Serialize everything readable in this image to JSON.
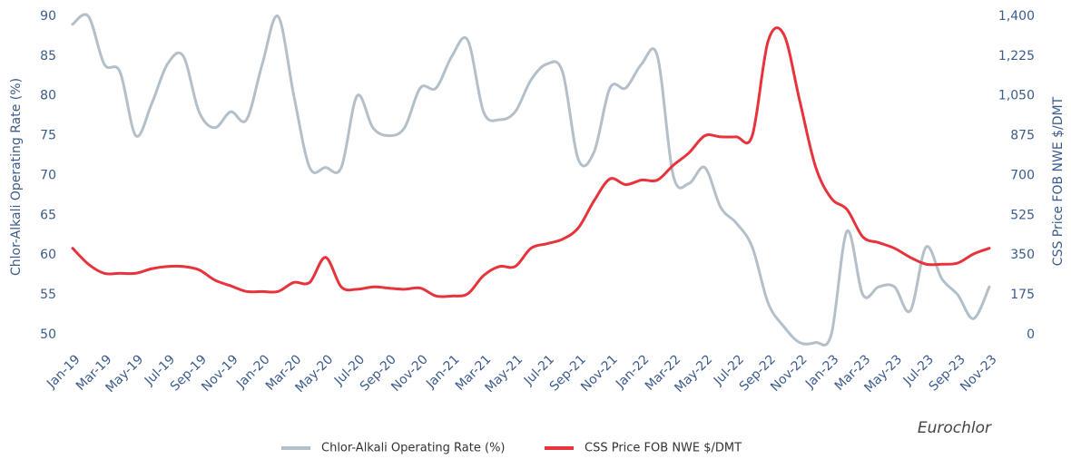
{
  "chart_data": {
    "type": "line",
    "y_label": "Chlor-Alkali Operating Rate (%)",
    "y2_label": "CSS Price FOB NWE $/DMT",
    "annotation": "Eurochlor",
    "categories": [
      "Jan-19",
      null,
      "Mar-19",
      null,
      "May-19",
      null,
      "Jul-19",
      null,
      "Sep-19",
      null,
      "Nov-19",
      null,
      "Jan-20",
      null,
      "Mar-20",
      null,
      "May-20",
      null,
      "Jul-20",
      null,
      "Sep-20",
      null,
      "Nov-20",
      null,
      "Jan-21",
      null,
      "Mar-21",
      null,
      "May-21",
      null,
      "Jul-21",
      null,
      "Sep-21",
      null,
      "Nov-21",
      null,
      "Jan-22",
      null,
      "Mar-22",
      null,
      "May-22",
      null,
      "Jul-22",
      null,
      "Sep-22",
      null,
      "Nov-22",
      null,
      "Jan-23",
      null,
      "Mar-23",
      null,
      "May-23",
      null,
      "Jul-23",
      null,
      "Sep-23",
      null,
      "Nov-23"
    ],
    "series": [
      {
        "name": "Chlor-Alkali Operating Rate (%)",
        "color": "#b3bfc9",
        "axis": "y",
        "values": [
          89,
          90,
          84,
          83,
          75,
          79,
          84,
          85,
          78,
          76,
          78,
          77,
          84,
          90,
          80,
          71,
          71,
          71,
          80,
          76,
          75,
          76,
          81,
          81,
          85,
          87,
          78,
          77,
          78,
          82,
          84,
          83,
          72,
          73,
          81,
          81,
          84,
          85,
          70,
          69,
          71,
          66,
          64,
          61,
          54,
          51,
          49,
          49,
          50,
          63,
          55,
          56,
          56,
          53,
          61,
          57,
          55,
          52,
          56
        ]
      },
      {
        "name": "CSS Price FOB NWE $/DMT",
        "color": "#e8323c",
        "axis": "y2",
        "values": [
          380,
          310,
          270,
          270,
          270,
          290,
          300,
          300,
          285,
          240,
          215,
          190,
          190,
          190,
          230,
          230,
          340,
          210,
          200,
          210,
          205,
          200,
          205,
          170,
          170,
          180,
          260,
          300,
          300,
          380,
          400,
          420,
          470,
          590,
          685,
          660,
          680,
          680,
          745,
          800,
          875,
          870,
          870,
          875,
          1290,
          1320,
          1030,
          740,
          600,
          550,
          430,
          405,
          380,
          340,
          310,
          310,
          315,
          355,
          380
        ]
      }
    ],
    "ylim": [
      48.5,
      90
    ],
    "yticks": [
      50,
      55,
      60,
      65,
      70,
      75,
      80,
      85,
      90
    ],
    "y2lim": [
      -52,
      1400
    ],
    "y2ticks": [
      0,
      175,
      350,
      525,
      700,
      875,
      {
        "value": 1050,
        "label": "1,050"
      },
      {
        "value": 1225,
        "label": "1,225"
      },
      {
        "value": 1400,
        "label": "1,400"
      }
    ],
    "grid": false,
    "legend": "bottom"
  }
}
